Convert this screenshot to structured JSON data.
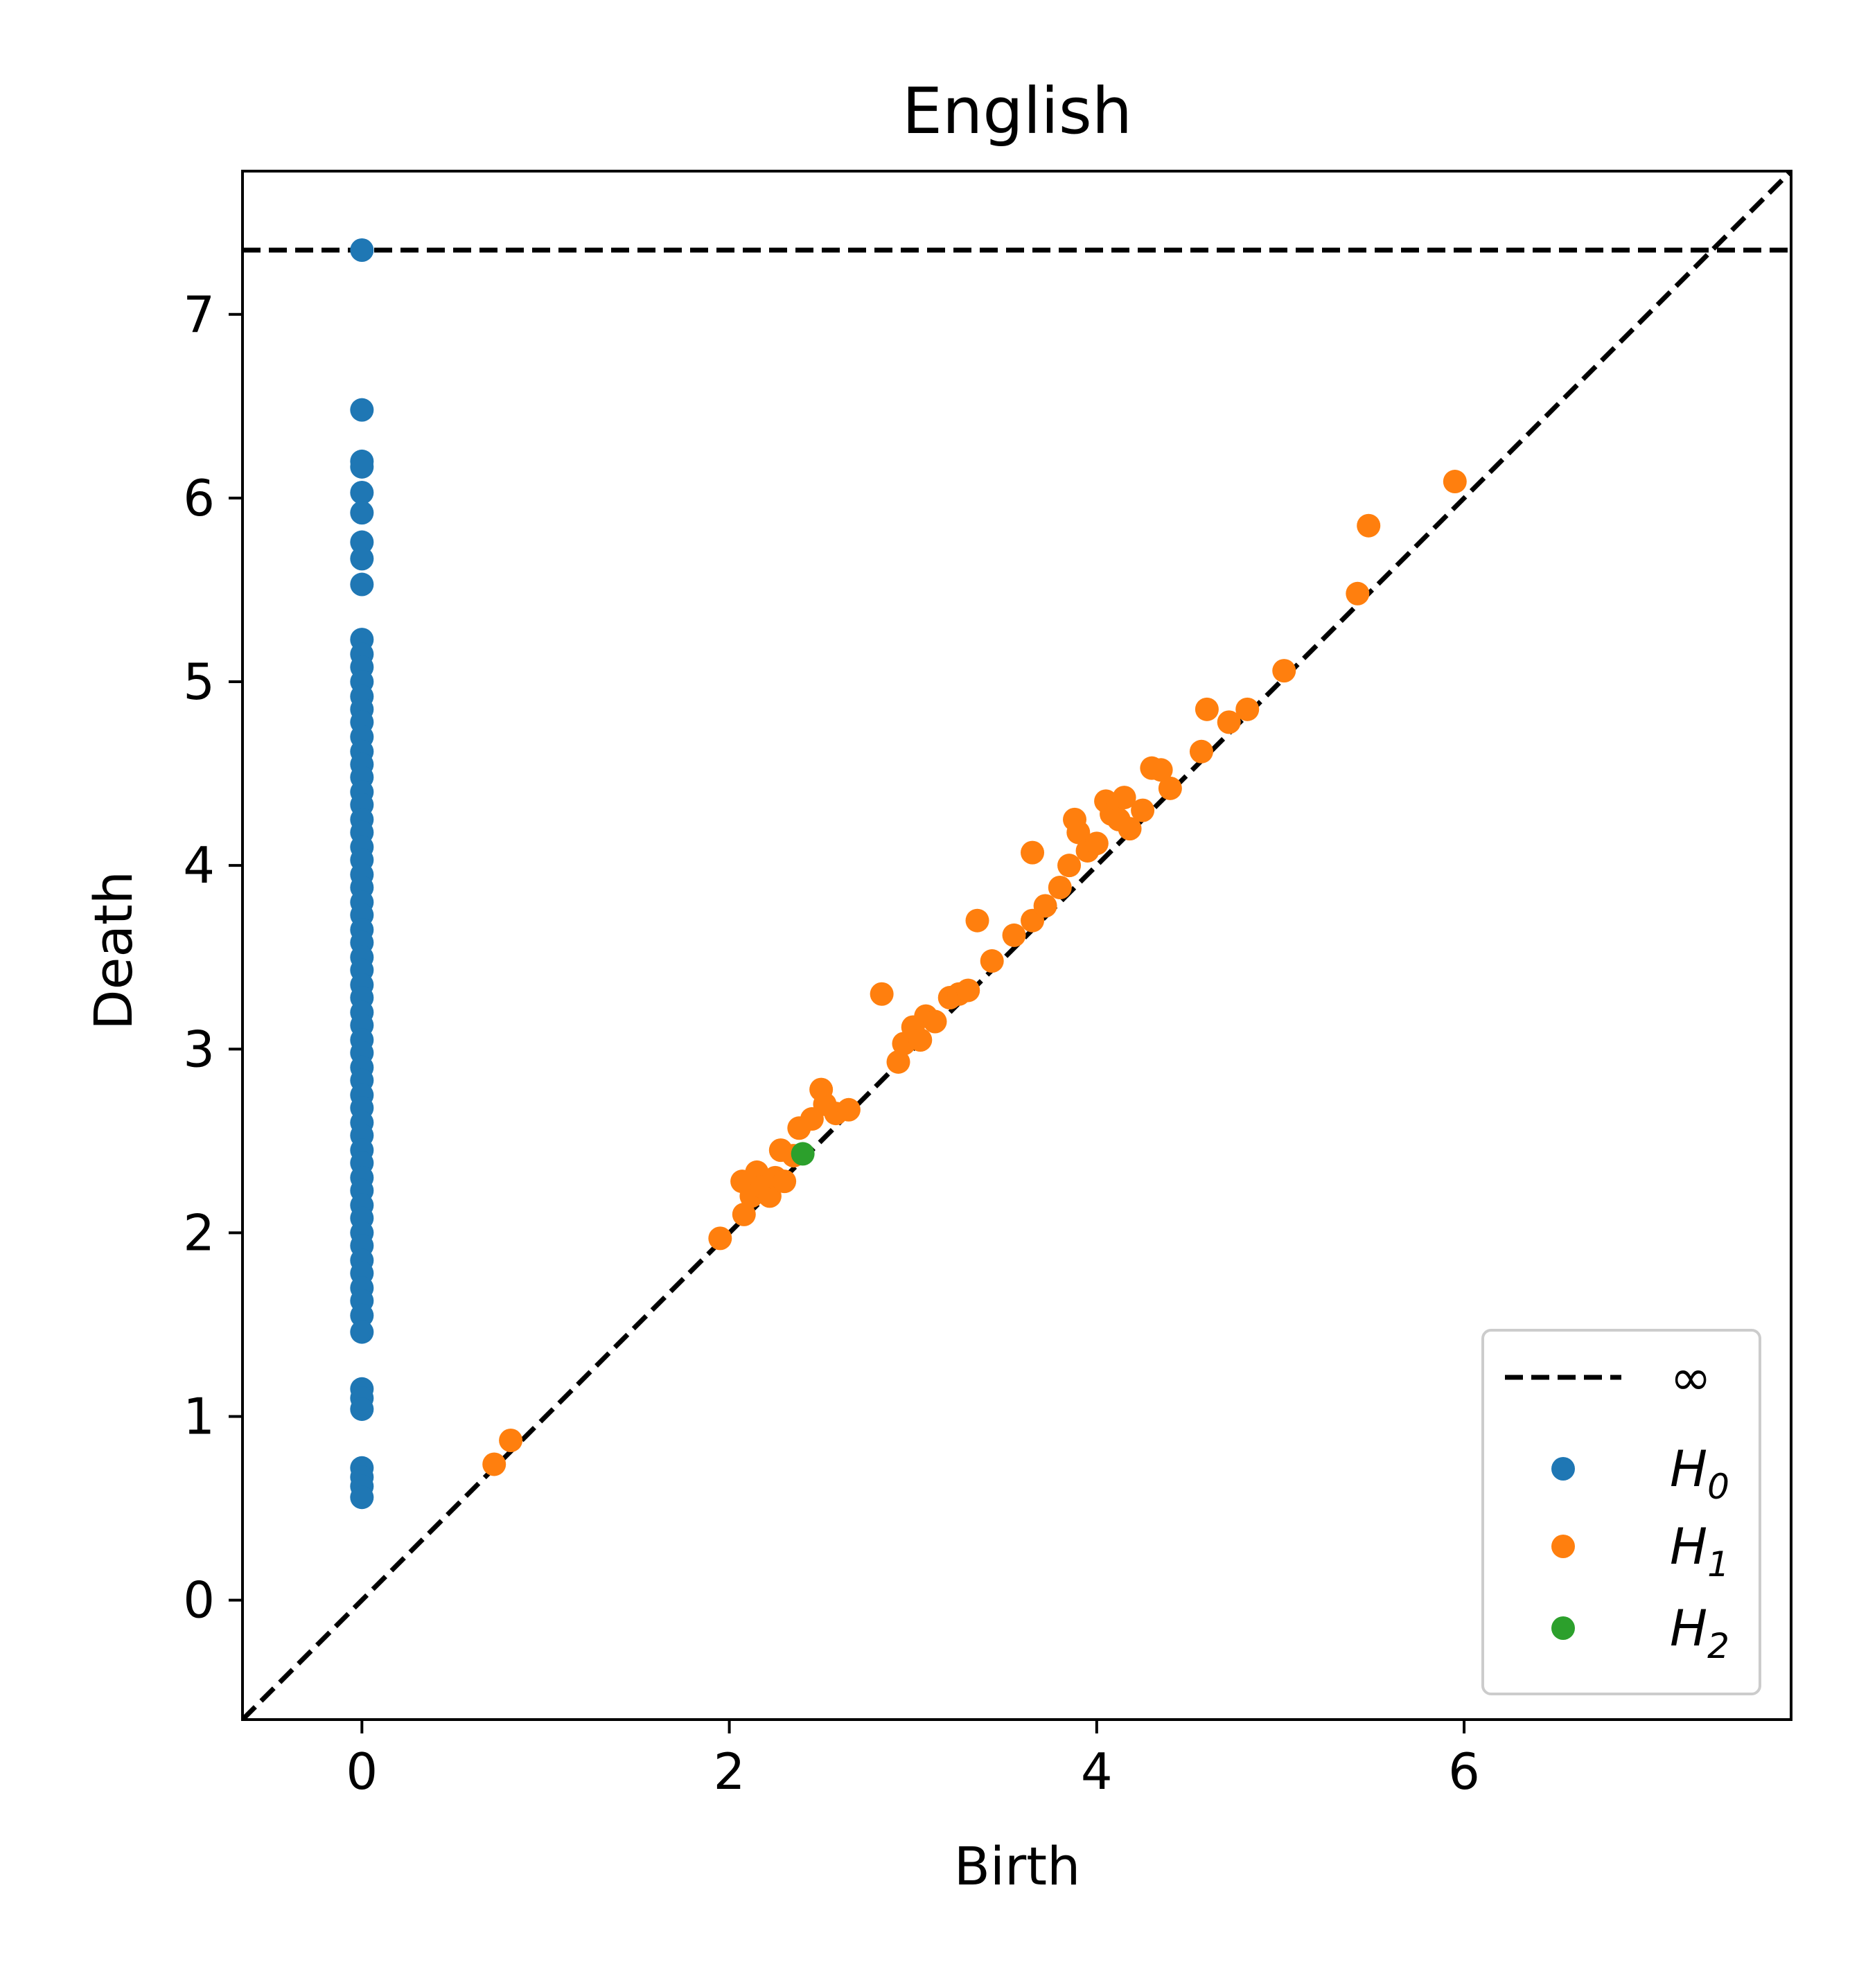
{
  "chart_data": {
    "type": "scatter",
    "title": "English",
    "xlabel": "Birth",
    "ylabel": "Death",
    "xlim": [
      -0.65,
      7.78
    ],
    "ylim": [
      -0.65,
      7.78
    ],
    "x_ticks": [
      0,
      2,
      4,
      6
    ],
    "y_ticks": [
      0,
      1,
      2,
      3,
      4,
      5,
      6,
      7
    ],
    "grid": false,
    "legend_position": "bottom-right",
    "infinity_line": {
      "label": "∞",
      "value": 7.35,
      "color": "#000000",
      "style": "dashed"
    },
    "diagonal": {
      "color": "#000000",
      "style": "dashed"
    },
    "legend": [
      {
        "kind": "line",
        "label": "∞",
        "color": "#000000"
      },
      {
        "kind": "point",
        "label": "H",
        "sub": "0",
        "color": "#1f77b4"
      },
      {
        "kind": "point",
        "label": "H",
        "sub": "1",
        "color": "#ff7f0e"
      },
      {
        "kind": "point",
        "label": "H",
        "sub": "2",
        "color": "#2ca02c"
      }
    ],
    "series": [
      {
        "name": "H0",
        "color": "#1f77b4",
        "points": [
          [
            0,
            7.35
          ],
          [
            0,
            6.48
          ],
          [
            0,
            6.2
          ],
          [
            0,
            6.17
          ],
          [
            0,
            6.03
          ],
          [
            0,
            5.92
          ],
          [
            0,
            5.76
          ],
          [
            0,
            5.67
          ],
          [
            0,
            5.53
          ],
          [
            0,
            5.23
          ],
          [
            0,
            5.15
          ],
          [
            0,
            5.08
          ],
          [
            0,
            5.0
          ],
          [
            0,
            4.92
          ],
          [
            0,
            4.85
          ],
          [
            0,
            4.78
          ],
          [
            0,
            4.7
          ],
          [
            0,
            4.62
          ],
          [
            0,
            4.55
          ],
          [
            0,
            4.48
          ],
          [
            0,
            4.4
          ],
          [
            0,
            4.33
          ],
          [
            0,
            4.25
          ],
          [
            0,
            4.18
          ],
          [
            0,
            4.1
          ],
          [
            0,
            4.03
          ],
          [
            0,
            3.95
          ],
          [
            0,
            3.88
          ],
          [
            0,
            3.8
          ],
          [
            0,
            3.73
          ],
          [
            0,
            3.65
          ],
          [
            0,
            3.58
          ],
          [
            0,
            3.5
          ],
          [
            0,
            3.43
          ],
          [
            0,
            3.35
          ],
          [
            0,
            3.28
          ],
          [
            0,
            3.2
          ],
          [
            0,
            3.13
          ],
          [
            0,
            3.05
          ],
          [
            0,
            2.98
          ],
          [
            0,
            2.9
          ],
          [
            0,
            2.83
          ],
          [
            0,
            2.75
          ],
          [
            0,
            2.68
          ],
          [
            0,
            2.6
          ],
          [
            0,
            2.53
          ],
          [
            0,
            2.45
          ],
          [
            0,
            2.38
          ],
          [
            0,
            2.3
          ],
          [
            0,
            2.23
          ],
          [
            0,
            2.15
          ],
          [
            0,
            2.08
          ],
          [
            0,
            2.0
          ],
          [
            0,
            1.93
          ],
          [
            0,
            1.85
          ],
          [
            0,
            1.78
          ],
          [
            0,
            1.7
          ],
          [
            0,
            1.63
          ],
          [
            0,
            1.55
          ],
          [
            0,
            1.46
          ],
          [
            0,
            1.15
          ],
          [
            0,
            1.1
          ],
          [
            0,
            1.04
          ],
          [
            0,
            0.72
          ],
          [
            0,
            0.67
          ],
          [
            0,
            0.62
          ],
          [
            0,
            0.56
          ]
        ]
      },
      {
        "name": "H1",
        "color": "#ff7f0e",
        "points": [
          [
            0.72,
            0.74
          ],
          [
            0.81,
            0.87
          ],
          [
            1.95,
            1.97
          ],
          [
            2.07,
            2.28
          ],
          [
            2.08,
            2.1
          ],
          [
            2.12,
            2.2
          ],
          [
            2.15,
            2.33
          ],
          [
            2.18,
            2.25
          ],
          [
            2.22,
            2.2
          ],
          [
            2.25,
            2.3
          ],
          [
            2.28,
            2.45
          ],
          [
            2.3,
            2.28
          ],
          [
            2.35,
            2.42
          ],
          [
            2.38,
            2.57
          ],
          [
            2.45,
            2.62
          ],
          [
            2.5,
            2.78
          ],
          [
            2.52,
            2.7
          ],
          [
            2.58,
            2.65
          ],
          [
            2.65,
            2.67
          ],
          [
            2.83,
            3.3
          ],
          [
            2.92,
            2.93
          ],
          [
            2.95,
            3.03
          ],
          [
            3.0,
            3.12
          ],
          [
            3.04,
            3.05
          ],
          [
            3.07,
            3.18
          ],
          [
            3.12,
            3.15
          ],
          [
            3.2,
            3.28
          ],
          [
            3.25,
            3.3
          ],
          [
            3.3,
            3.32
          ],
          [
            3.35,
            3.7
          ],
          [
            3.43,
            3.48
          ],
          [
            3.55,
            3.62
          ],
          [
            3.65,
            4.07
          ],
          [
            3.65,
            3.7
          ],
          [
            3.72,
            3.78
          ],
          [
            3.8,
            3.88
          ],
          [
            3.85,
            4.0
          ],
          [
            3.88,
            4.25
          ],
          [
            3.9,
            4.18
          ],
          [
            3.95,
            4.08
          ],
          [
            4.0,
            4.12
          ],
          [
            4.05,
            4.35
          ],
          [
            4.08,
            4.28
          ],
          [
            4.12,
            4.25
          ],
          [
            4.15,
            4.37
          ],
          [
            4.18,
            4.2
          ],
          [
            4.25,
            4.3
          ],
          [
            4.3,
            4.53
          ],
          [
            4.35,
            4.52
          ],
          [
            4.4,
            4.42
          ],
          [
            4.57,
            4.62
          ],
          [
            4.6,
            4.85
          ],
          [
            4.72,
            4.78
          ],
          [
            4.82,
            4.85
          ],
          [
            5.02,
            5.06
          ],
          [
            5.42,
            5.48
          ],
          [
            5.48,
            5.85
          ],
          [
            5.95,
            6.09
          ]
        ]
      },
      {
        "name": "H2",
        "color": "#2ca02c",
        "points": [
          [
            2.4,
            2.43
          ]
        ]
      }
    ]
  }
}
